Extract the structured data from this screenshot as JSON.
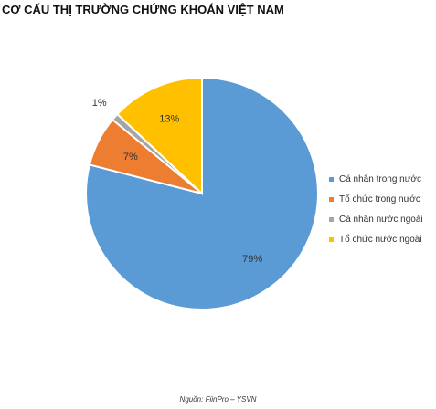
{
  "title": "CƠ CẤU THỊ TRƯỜNG CHỨNG KHOÁN VIỆT NAM",
  "source": "Nguồn: FiinPro – YSVN",
  "chart_data": {
    "type": "pie",
    "title": "CƠ CẤU THỊ TRƯỜNG CHỨNG KHOÁN VIỆT NAM",
    "slices": [
      {
        "label": "Cá nhân trong nước",
        "value": 79,
        "display": "79%",
        "color": "#5B9BD5"
      },
      {
        "label": "Tổ chức trong nước",
        "value": 7,
        "display": "7%",
        "color": "#ED7D31"
      },
      {
        "label": "Cá nhân nước ngoài",
        "value": 1,
        "display": "1%",
        "color": "#A5A5A5"
      },
      {
        "label": "Tổ chức nước ngoài",
        "value": 13,
        "display": "13%",
        "color": "#FFC000"
      }
    ],
    "legend_position": "right"
  }
}
